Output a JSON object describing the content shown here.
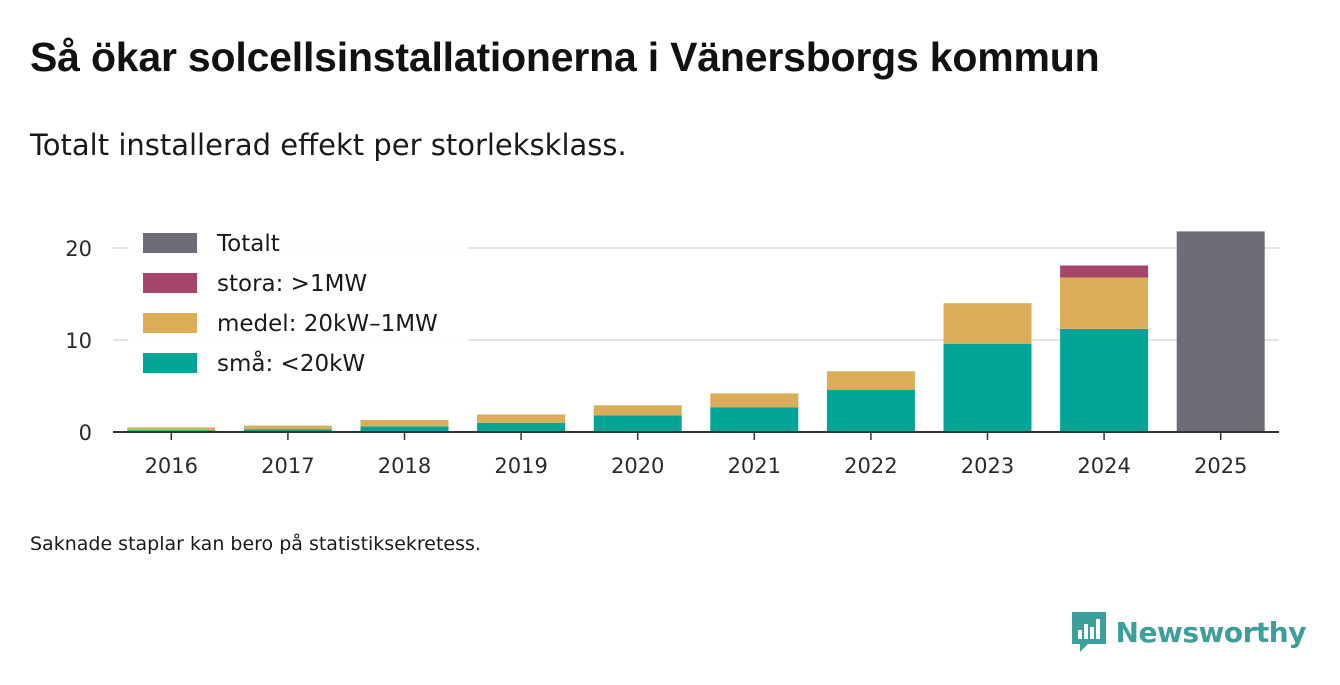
{
  "title": "Så ökar solcellsinstallationerna i Vänersborgs kommun",
  "subtitle": "Totalt installerad effekt per storleksklass.",
  "footnote": "Saknade staplar kan bero på statistiksekretess.",
  "brand": "Newsworthy",
  "colors": {
    "sma": "#00a598",
    "medel": "#dbad58",
    "stora": "#a8456a",
    "totalt": "#6e6d77",
    "grid": "#dcdcdc",
    "axis": "#333333"
  },
  "chart_data": {
    "type": "bar",
    "stacked": true,
    "title": "Så ökar solcellsinstallationerna i Vänersborgs kommun",
    "subtitle": "Totalt installerad effekt per storleksklass.",
    "xlabel": "",
    "ylabel": "",
    "ylim": [
      0,
      21
    ],
    "yticks": [
      0,
      10,
      20
    ],
    "grid": true,
    "legend_position": "top-left",
    "categories": [
      "2016",
      "2017",
      "2018",
      "2019",
      "2020",
      "2021",
      "2022",
      "2023",
      "2024",
      "2025"
    ],
    "legend": [
      {
        "key": "totalt",
        "label": "Totalt"
      },
      {
        "key": "stora",
        "label": "stora: >1MW"
      },
      {
        "key": "medel",
        "label": "medel: 20kW–1MW"
      },
      {
        "key": "sma",
        "label": "små: <20kW"
      }
    ],
    "series": [
      {
        "key": "sma",
        "name": "små: <20kW",
        "values": [
          0.2,
          0.3,
          0.6,
          1.0,
          1.8,
          2.7,
          4.6,
          9.6,
          11.2,
          null
        ]
      },
      {
        "key": "medel",
        "name": "medel: 20kW–1MW",
        "values": [
          0.3,
          0.4,
          0.7,
          0.9,
          1.1,
          1.5,
          2.0,
          4.4,
          5.6,
          null
        ]
      },
      {
        "key": "stora",
        "name": "stora: >1MW",
        "values": [
          null,
          null,
          null,
          null,
          null,
          null,
          null,
          null,
          1.3,
          null
        ]
      },
      {
        "key": "totalt",
        "name": "Totalt",
        "values": [
          null,
          null,
          null,
          null,
          null,
          null,
          null,
          null,
          null,
          21.8
        ]
      }
    ]
  }
}
